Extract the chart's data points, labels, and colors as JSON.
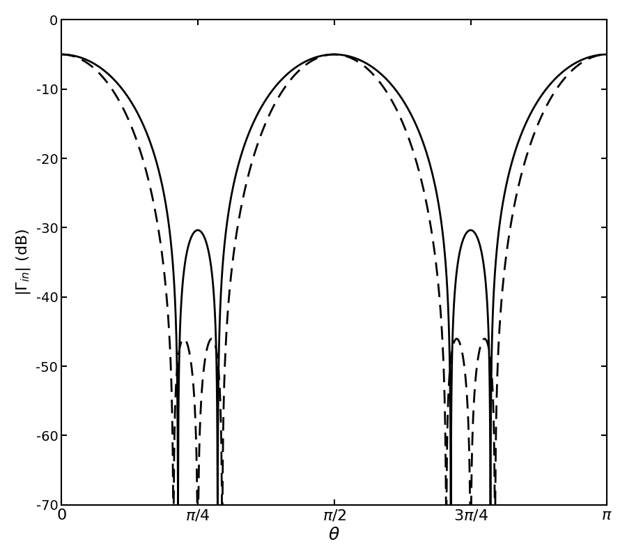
{
  "xlim": [
    0,
    3.14159265358979
  ],
  "ylim": [
    -70,
    0
  ],
  "yticks": [
    0,
    -10,
    -20,
    -30,
    -40,
    -50,
    -60,
    -70
  ],
  "xtick_positions": [
    0,
    0.7853981633974483,
    1.5707963267948966,
    2.356194490192345,
    3.14159265358979
  ],
  "xtick_labels": [
    "0",
    "$\\pi/4$",
    "$\\pi/2$",
    "$3\\pi/4$",
    "$\\pi$"
  ],
  "xlabel": "$\\theta$",
  "ylabel": "$|\\Gamma_{in}|$ (dB)",
  "floor_dB": -70,
  "n_points": 10000,
  "gamma0_dB": -5.0,
  "solid_c": 0.32,
  "solid_N": 2,
  "dashed_c": 0.32,
  "dashed_N": 3,
  "ripple_dB": -31.0,
  "line_color": "#000000",
  "background_color": "#ffffff",
  "solid_lw": 2.0,
  "dashed_lw": 2.0
}
